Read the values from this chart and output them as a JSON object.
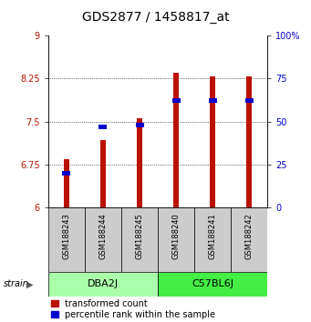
{
  "title": "GDS2877 / 1458817_at",
  "samples": [
    "GSM188243",
    "GSM188244",
    "GSM188245",
    "GSM188240",
    "GSM188241",
    "GSM188242"
  ],
  "groups": [
    {
      "name": "DBA2J",
      "indices": [
        0,
        1,
        2
      ],
      "color": "#aaffaa"
    },
    {
      "name": "C57BL6J",
      "indices": [
        3,
        4,
        5
      ],
      "color": "#44ee44"
    }
  ],
  "transformed_counts": [
    6.84,
    7.18,
    7.55,
    8.35,
    8.28,
    8.28
  ],
  "percentile_ranks": [
    20.0,
    47.0,
    48.0,
    62.0,
    62.0,
    62.0
  ],
  "bar_bottom": 6.0,
  "ylim": [
    6.0,
    9.0
  ],
  "yticks_left": [
    6,
    6.75,
    7.5,
    8.25,
    9
  ],
  "ytick_labels_left": [
    "6",
    "6.75",
    "7.5",
    "8.25",
    "9"
  ],
  "yticks_right_vals": [
    0,
    25,
    50,
    75,
    100
  ],
  "ytick_labels_right": [
    "0",
    "25",
    "50",
    "75",
    "100%"
  ],
  "red_color": "#bb1100",
  "blue_color": "#0000cc",
  "bar_width": 0.15,
  "grid_color": "#888888",
  "sample_box_color": "#cccccc",
  "group_label_fontsize": 8,
  "tick_label_fontsize": 7,
  "title_fontsize": 10,
  "legend_fontsize": 7,
  "strain_label": "strain",
  "arrow_color": "#555555"
}
